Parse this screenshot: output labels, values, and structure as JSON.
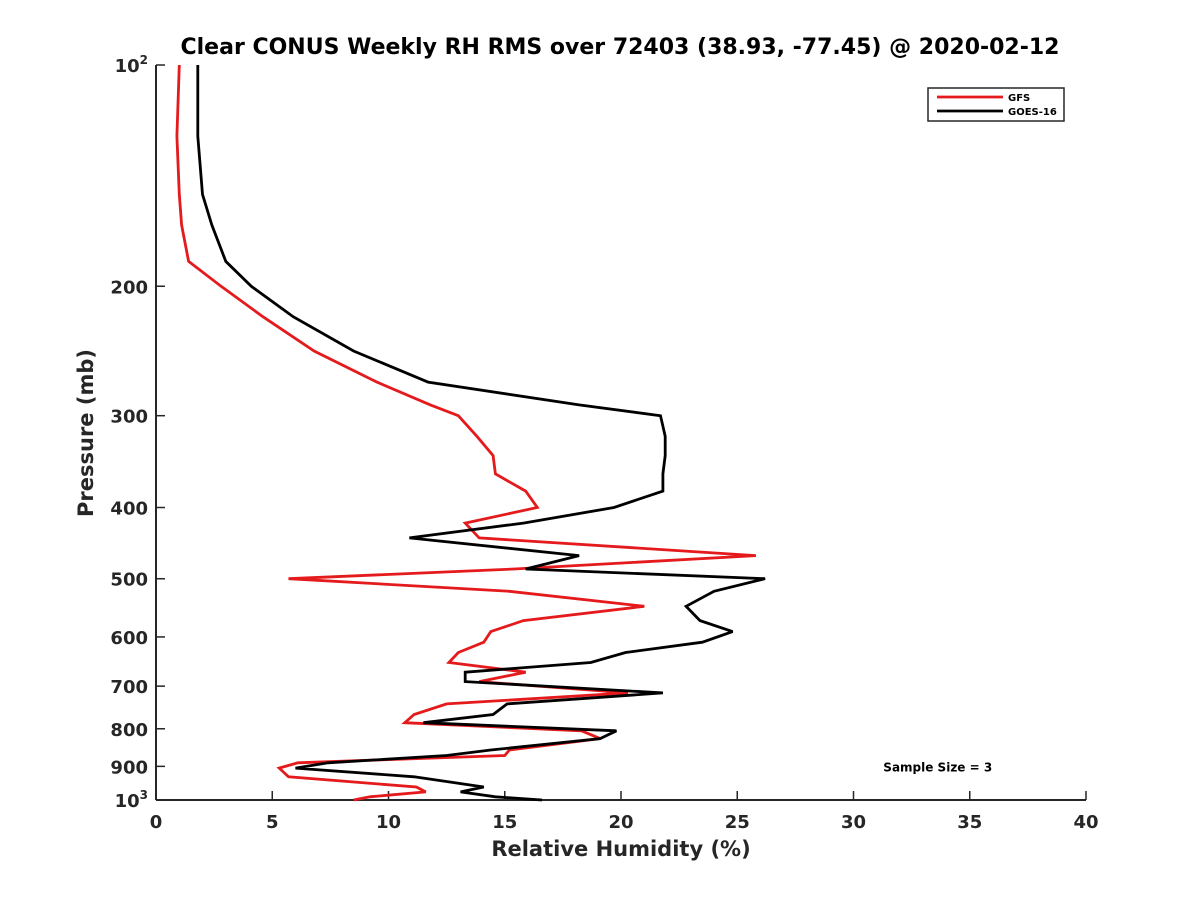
{
  "chart_data": {
    "type": "line",
    "title": "Clear CONUS Weekly RH RMS over 72403 (38.93, -77.45) @ 2020-02-12",
    "xlabel": "Relative Humidity (%)",
    "ylabel": "Pressure (mb)",
    "xlim": [
      0,
      40
    ],
    "ylim": [
      100,
      1000
    ],
    "y_scale": "log",
    "y_reversed": true,
    "grid": false,
    "legend_position": "top-right",
    "x_ticks": [
      {
        "value": 0,
        "label": "0"
      },
      {
        "value": 5,
        "label": "5"
      },
      {
        "value": 10,
        "label": "10"
      },
      {
        "value": 15,
        "label": "15"
      },
      {
        "value": 20,
        "label": "20"
      },
      {
        "value": 25,
        "label": "25"
      },
      {
        "value": 30,
        "label": "30"
      },
      {
        "value": 35,
        "label": "35"
      },
      {
        "value": 40,
        "label": "40"
      }
    ],
    "y_ticks": [
      {
        "value": 100,
        "base": "10",
        "exp": "2"
      },
      {
        "value": 200,
        "base": "200",
        "exp": ""
      },
      {
        "value": 300,
        "base": "300",
        "exp": ""
      },
      {
        "value": 400,
        "base": "400",
        "exp": ""
      },
      {
        "value": 500,
        "base": "500",
        "exp": ""
      },
      {
        "value": 600,
        "base": "600",
        "exp": ""
      },
      {
        "value": 700,
        "base": "700",
        "exp": ""
      },
      {
        "value": 800,
        "base": "800",
        "exp": ""
      },
      {
        "value": 900,
        "base": "900",
        "exp": ""
      },
      {
        "value": 1000,
        "base": "10",
        "exp": "3"
      }
    ],
    "annotations": [
      {
        "text": "Sample Size = 3",
        "x": 35,
        "y": 900
      }
    ],
    "series": [
      {
        "name": "GFS",
        "color": "#e41a1c",
        "points": [
          [
            1.0,
            100
          ],
          [
            0.9,
            125
          ],
          [
            1.0,
            150
          ],
          [
            1.1,
            165
          ],
          [
            1.4,
            185
          ],
          [
            2.8,
            200
          ],
          [
            4.6,
            220
          ],
          [
            6.8,
            245
          ],
          [
            9.5,
            270
          ],
          [
            11.8,
            290
          ],
          [
            13.0,
            300
          ],
          [
            13.8,
            320
          ],
          [
            14.5,
            340
          ],
          [
            14.6,
            360
          ],
          [
            15.9,
            380
          ],
          [
            16.4,
            400
          ],
          [
            13.3,
            420
          ],
          [
            13.9,
            440
          ],
          [
            25.8,
            465
          ],
          [
            15.4,
            485
          ],
          [
            5.7,
            500
          ],
          [
            15.2,
            520
          ],
          [
            21.0,
            545
          ],
          [
            15.8,
            570
          ],
          [
            14.4,
            590
          ],
          [
            14.1,
            610
          ],
          [
            13.0,
            630
          ],
          [
            12.6,
            650
          ],
          [
            15.9,
            670
          ],
          [
            13.9,
            690
          ],
          [
            20.3,
            715
          ],
          [
            12.5,
            740
          ],
          [
            11.1,
            765
          ],
          [
            10.7,
            785
          ],
          [
            18.3,
            805
          ],
          [
            19.1,
            825
          ],
          [
            15.2,
            855
          ],
          [
            15.0,
            870
          ],
          [
            6.1,
            890
          ],
          [
            5.3,
            905
          ],
          [
            5.7,
            930
          ],
          [
            11.2,
            960
          ],
          [
            11.6,
            975
          ],
          [
            9.2,
            990
          ],
          [
            8.5,
            1000
          ]
        ]
      },
      {
        "name": "GOES-16",
        "color": "#000000",
        "points": [
          [
            1.8,
            100
          ],
          [
            1.8,
            125
          ],
          [
            2.0,
            150
          ],
          [
            2.4,
            165
          ],
          [
            3.0,
            185
          ],
          [
            4.1,
            200
          ],
          [
            5.9,
            220
          ],
          [
            8.5,
            245
          ],
          [
            11.7,
            270
          ],
          [
            18.2,
            290
          ],
          [
            21.7,
            300
          ],
          [
            21.9,
            320
          ],
          [
            21.9,
            340
          ],
          [
            21.8,
            360
          ],
          [
            21.8,
            380
          ],
          [
            19.7,
            400
          ],
          [
            15.8,
            420
          ],
          [
            10.9,
            440
          ],
          [
            18.2,
            465
          ],
          [
            15.9,
            485
          ],
          [
            26.2,
            500
          ],
          [
            24.0,
            520
          ],
          [
            22.8,
            545
          ],
          [
            23.4,
            570
          ],
          [
            24.8,
            590
          ],
          [
            23.5,
            610
          ],
          [
            20.2,
            630
          ],
          [
            18.7,
            650
          ],
          [
            13.3,
            670
          ],
          [
            13.3,
            690
          ],
          [
            21.8,
            715
          ],
          [
            15.1,
            740
          ],
          [
            14.5,
            765
          ],
          [
            11.5,
            785
          ],
          [
            19.8,
            805
          ],
          [
            19.1,
            825
          ],
          [
            14.4,
            855
          ],
          [
            12.5,
            870
          ],
          [
            7.4,
            890
          ],
          [
            6.0,
            905
          ],
          [
            11.1,
            930
          ],
          [
            14.1,
            960
          ],
          [
            13.1,
            975
          ],
          [
            14.6,
            990
          ],
          [
            16.6,
            1000
          ]
        ]
      }
    ]
  }
}
